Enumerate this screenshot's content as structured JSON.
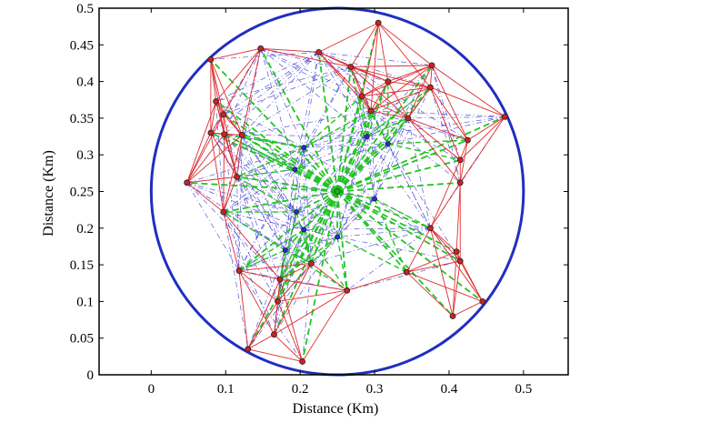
{
  "chart_data": {
    "type": "scatter",
    "title": "",
    "xlabel": "Distance (Km)",
    "ylabel": "Distance (Km)",
    "xlim": [
      -0.07,
      0.56
    ],
    "ylim": [
      0,
      0.5
    ],
    "xticks": [
      0,
      0.1,
      0.2,
      0.3,
      0.4,
      0.5
    ],
    "xtick_labels": [
      "0",
      "0.1",
      "0.2",
      "0.3",
      "0.4",
      "0.5"
    ],
    "yticks": [
      0,
      0.05,
      0.1,
      0.15,
      0.2,
      0.25,
      0.3,
      0.35,
      0.4,
      0.45,
      0.5
    ],
    "ytick_labels": [
      "0",
      "0.05",
      "0.1",
      "0.15",
      "0.2",
      "0.25",
      "0.3",
      "0.35",
      "0.4",
      "0.45",
      "0.5"
    ],
    "grid": false,
    "boundary_circle": {
      "center": [
        0.25,
        0.25
      ],
      "radius": 0.25,
      "color": "#1f2fbf"
    },
    "center_node": {
      "x": 0.25,
      "y": 0.25,
      "color": "#22aa22"
    },
    "colors": {
      "red_links": "#e23030",
      "green_links": "#22c422",
      "blue_links": "#3a3ad0",
      "outer_node": "#cc2222",
      "inner_node": "#2a2ad0",
      "node_center": "#222222"
    },
    "outer_nodes": [
      [
        0.305,
        0.48
      ],
      [
        0.147,
        0.445
      ],
      [
        0.225,
        0.44
      ],
      [
        0.08,
        0.43
      ],
      [
        0.268,
        0.42
      ],
      [
        0.377,
        0.422
      ],
      [
        0.318,
        0.4
      ],
      [
        0.087,
        0.373
      ],
      [
        0.375,
        0.392
      ],
      [
        0.283,
        0.38
      ],
      [
        0.295,
        0.36
      ],
      [
        0.475,
        0.352
      ],
      [
        0.097,
        0.355
      ],
      [
        0.345,
        0.35
      ],
      [
        0.08,
        0.33
      ],
      [
        0.425,
        0.32
      ],
      [
        0.098,
        0.328
      ],
      [
        0.122,
        0.327
      ],
      [
        0.415,
        0.293
      ],
      [
        0.115,
        0.27
      ],
      [
        0.048,
        0.262
      ],
      [
        0.415,
        0.262
      ],
      [
        0.097,
        0.222
      ],
      [
        0.375,
        0.2
      ],
      [
        0.41,
        0.168
      ],
      [
        0.415,
        0.155
      ],
      [
        0.118,
        0.142
      ],
      [
        0.343,
        0.14
      ],
      [
        0.215,
        0.152
      ],
      [
        0.173,
        0.13
      ],
      [
        0.263,
        0.115
      ],
      [
        0.445,
        0.1
      ],
      [
        0.17,
        0.1
      ],
      [
        0.405,
        0.08
      ],
      [
        0.165,
        0.055
      ],
      [
        0.13,
        0.035
      ],
      [
        0.203,
        0.018
      ]
    ],
    "inner_nodes": [
      [
        0.205,
        0.31
      ],
      [
        0.318,
        0.315
      ],
      [
        0.193,
        0.28
      ],
      [
        0.29,
        0.325
      ],
      [
        0.3,
        0.24
      ],
      [
        0.195,
        0.222
      ],
      [
        0.205,
        0.198
      ],
      [
        0.25,
        0.188
      ],
      [
        0.18,
        0.17
      ]
    ]
  }
}
